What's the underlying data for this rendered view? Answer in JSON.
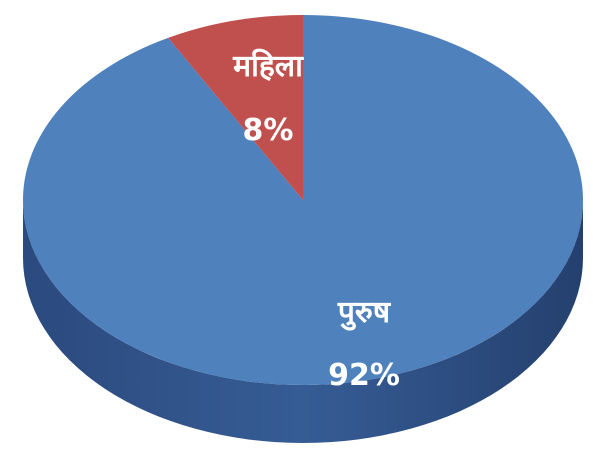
{
  "chart_data": {
    "type": "pie",
    "title": "",
    "style": "3d",
    "categories": [
      "पुरुष",
      "महिला"
    ],
    "values": [
      92,
      8
    ],
    "labels": [
      {
        "name": "पुरुष",
        "value": "92%"
      },
      {
        "name": "महिला",
        "value": "8%"
      }
    ],
    "colors": [
      "#4f81bd",
      "#c0504d"
    ],
    "legend": "none"
  }
}
